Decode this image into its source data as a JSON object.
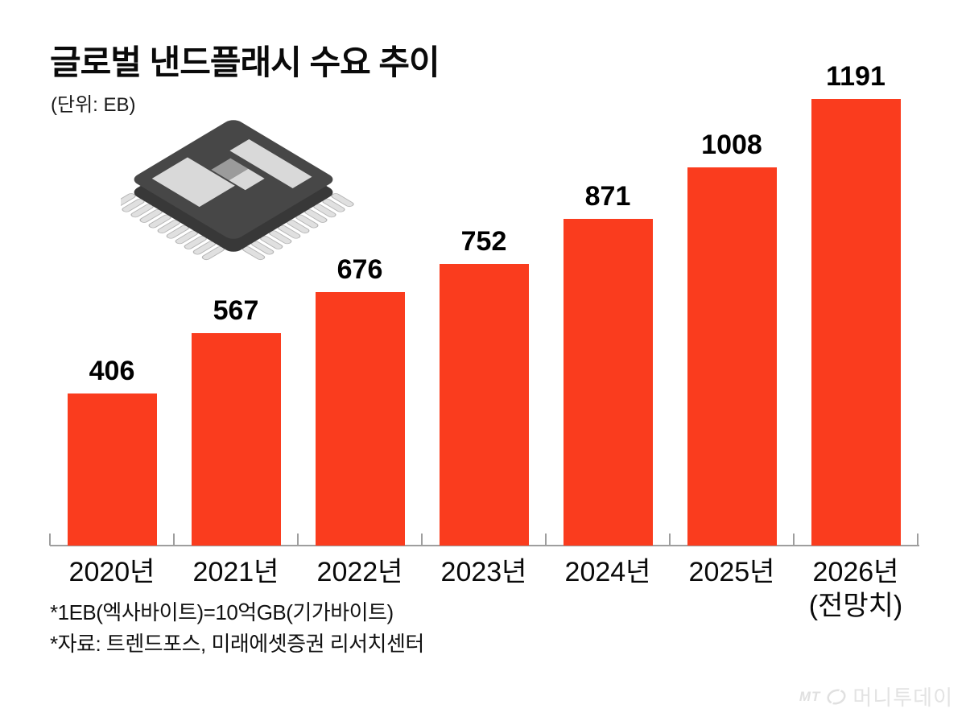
{
  "page": {
    "title": "글로벌 낸드플래시 수요 추이",
    "unit_label": "(단위: EB)"
  },
  "chart_data": {
    "type": "bar",
    "title": "글로벌 낸드플래시 수요 추이",
    "unit": "EB",
    "categories": [
      "2020년",
      "2021년",
      "2022년",
      "2023년",
      "2024년",
      "2025년",
      "2026년"
    ],
    "category_sublabels": [
      "",
      "",
      "",
      "",
      "",
      "",
      "(전망치)"
    ],
    "values": [
      406,
      567,
      676,
      752,
      871,
      1008,
      1191
    ],
    "value_labels_shown": true,
    "ylim": [
      0,
      1250
    ],
    "grid": false,
    "legend": "none",
    "bar_color": "#fa3c1e"
  },
  "footnotes": {
    "line1": "*1EB(엑사바이트)=10억GB(기가바이트)",
    "line2": "*자료: 트렌드포스, 미래에셋증권 리서치센터"
  },
  "watermark": {
    "logo_text": "MT",
    "brand": "머니투데이"
  },
  "colors": {
    "bar": "#fa3c1e",
    "axis": "#9e9e9e",
    "text": "#000000",
    "watermark": "#e3e3e3",
    "chip_body": "#474747",
    "chip_side": "#383838",
    "chip_pad_light": "#d9d9d9",
    "chip_pad_gray": "#9b9b9b",
    "chip_pin": "#e0e0e0"
  }
}
